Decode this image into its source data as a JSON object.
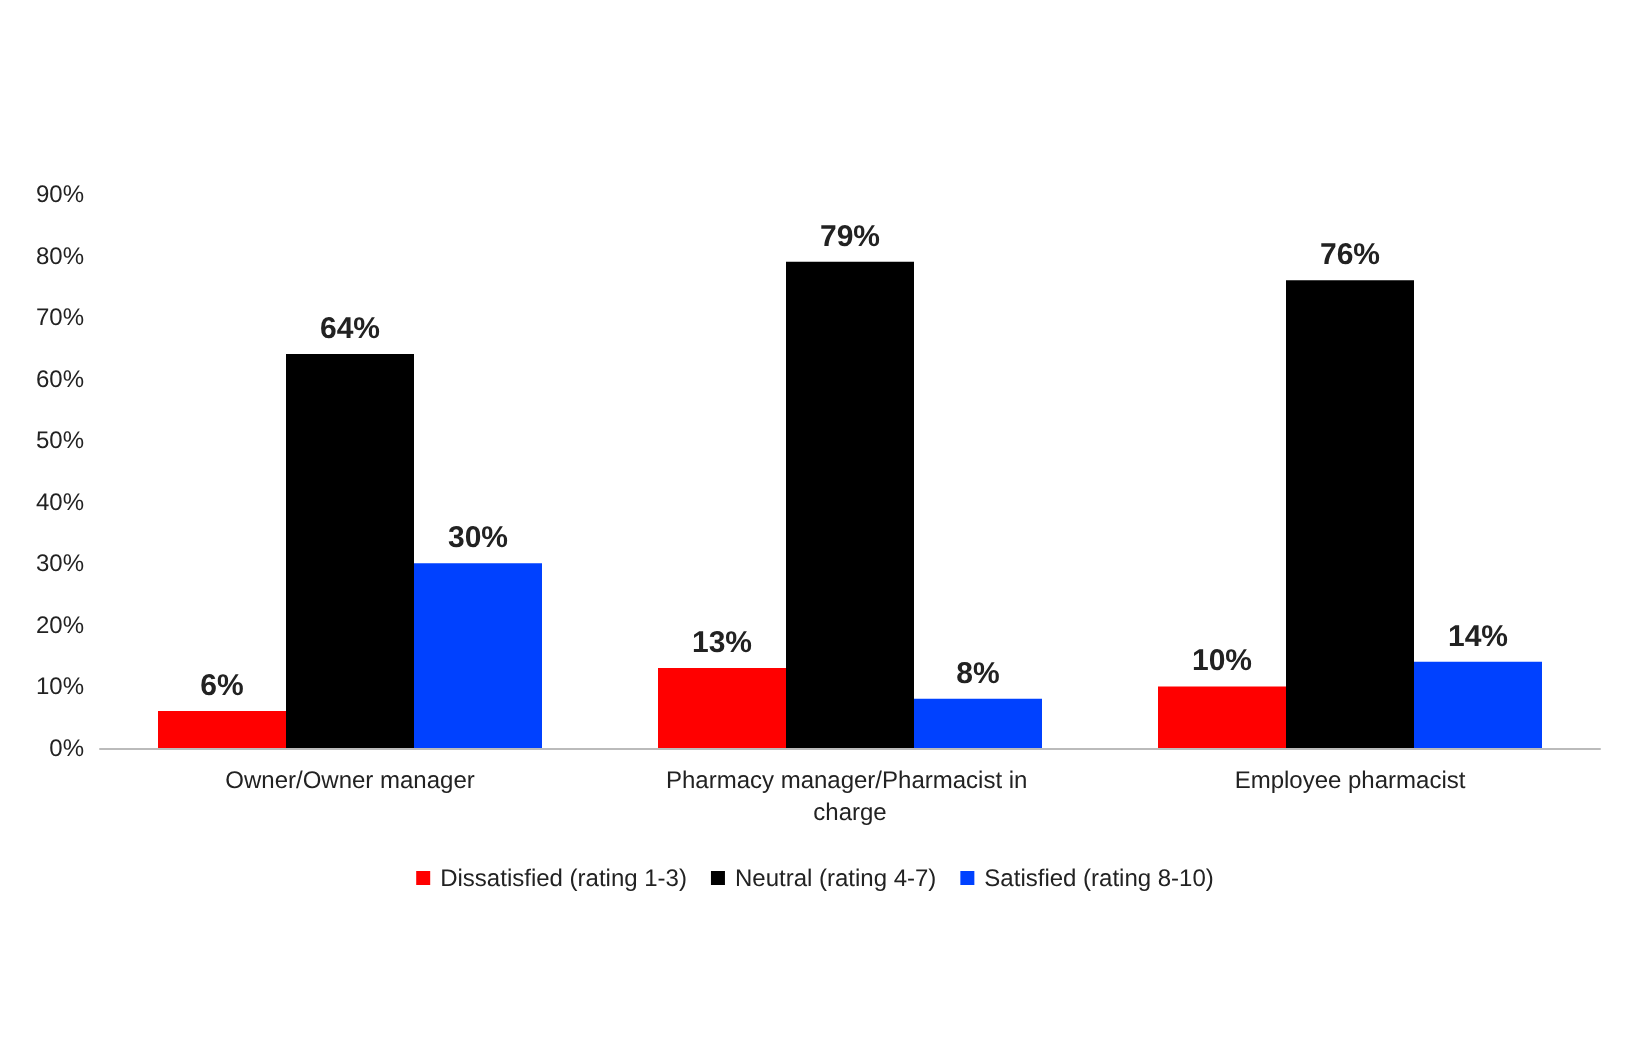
{
  "chart_data": {
    "type": "bar",
    "categories": [
      "Owner/Owner manager",
      "Pharmacy manager/Pharmacist in charge",
      "Employee pharmacist"
    ],
    "series": [
      {
        "name": "Dissatisfied (rating 1-3)",
        "color": "#ff0000",
        "values": [
          6,
          13,
          10
        ],
        "value_labels": [
          "6%",
          "13%",
          "10%"
        ]
      },
      {
        "name": "Neutral (rating 4-7)",
        "color": "#000000",
        "values": [
          64,
          79,
          76
        ],
        "value_labels": [
          "64%",
          "79%",
          "76%"
        ]
      },
      {
        "name": "Satisfied (rating 8-10)",
        "color": "#0041ff",
        "values": [
          30,
          8,
          14
        ],
        "value_labels": [
          "30%",
          "8%",
          "14%"
        ]
      }
    ],
    "ylim": [
      0,
      90
    ],
    "yticks": [
      {
        "value": 0,
        "label": "0%"
      },
      {
        "value": 10,
        "label": "10%"
      },
      {
        "value": 20,
        "label": "20%"
      },
      {
        "value": 30,
        "label": "30%"
      },
      {
        "value": 40,
        "label": "40%"
      },
      {
        "value": 50,
        "label": "50%"
      },
      {
        "value": 60,
        "label": "60%"
      },
      {
        "value": 70,
        "label": "70%"
      },
      {
        "value": 80,
        "label": "80%"
      },
      {
        "value": 90,
        "label": "90%"
      }
    ],
    "grid": false,
    "legend": "bottom"
  }
}
